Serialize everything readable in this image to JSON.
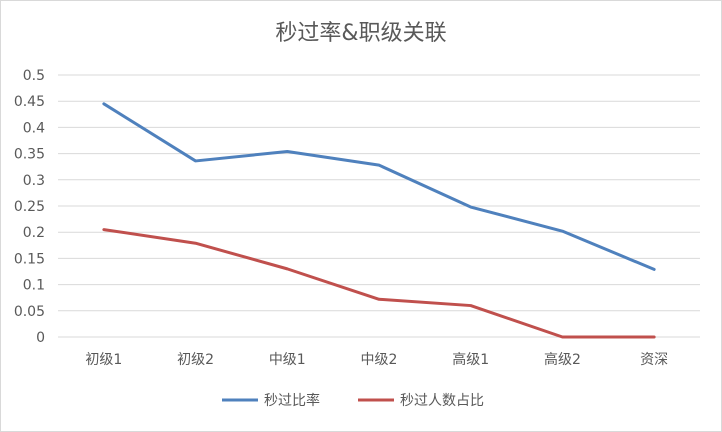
{
  "chart_data": {
    "type": "line",
    "title": "秒过率&职级关联",
    "categories": [
      "初级1",
      "初级2",
      "中级1",
      "中级2",
      "高级1",
      "高级2",
      "资深"
    ],
    "series": [
      {
        "name": "秒过比率",
        "color": "#4f81bd",
        "values": [
          0.445,
          0.336,
          0.354,
          0.328,
          0.248,
          0.202,
          0.129
        ]
      },
      {
        "name": "秒过人数占比",
        "color": "#c0504d",
        "values": [
          0.205,
          0.179,
          0.13,
          0.072,
          0.06,
          0.0,
          0.0
        ]
      }
    ],
    "y_ticks": [
      "0",
      "0.05",
      "0.1",
      "0.15",
      "0.2",
      "0.25",
      "0.3",
      "0.35",
      "0.4",
      "0.45",
      "0.5"
    ],
    "ylim": [
      0,
      0.5
    ],
    "grid": true,
    "legend_position": "bottom",
    "gridline_color": "#d9d9d9"
  }
}
